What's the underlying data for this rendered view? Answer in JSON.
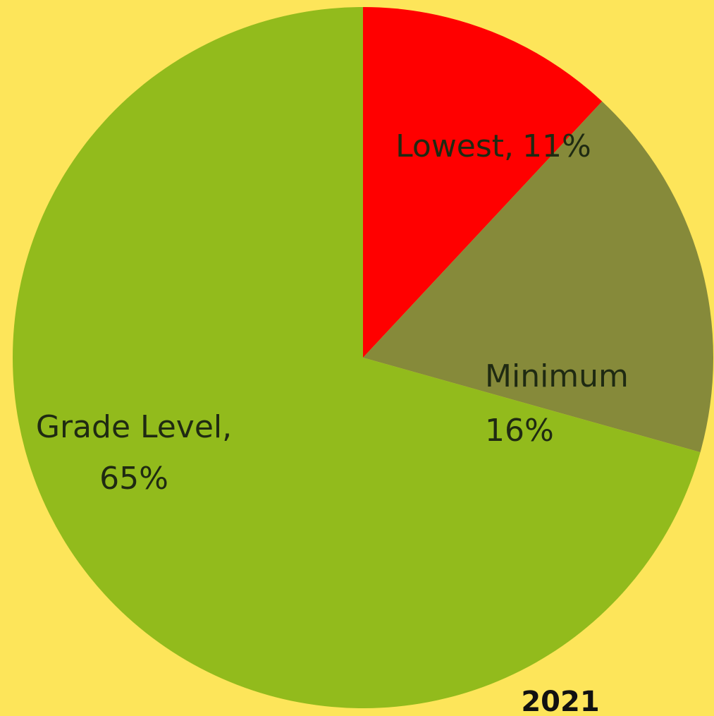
{
  "chart_data": {
    "type": "pie",
    "categories": [
      "Lowest,",
      "Minimum",
      "Grade Level,"
    ],
    "values": [
      11,
      16,
      65
    ],
    "value_labels": [
      "11%",
      "16%",
      "65%"
    ],
    "colors": [
      "#ff0000",
      "#868a3a",
      "#92bb1c"
    ],
    "annotation": "2021"
  }
}
